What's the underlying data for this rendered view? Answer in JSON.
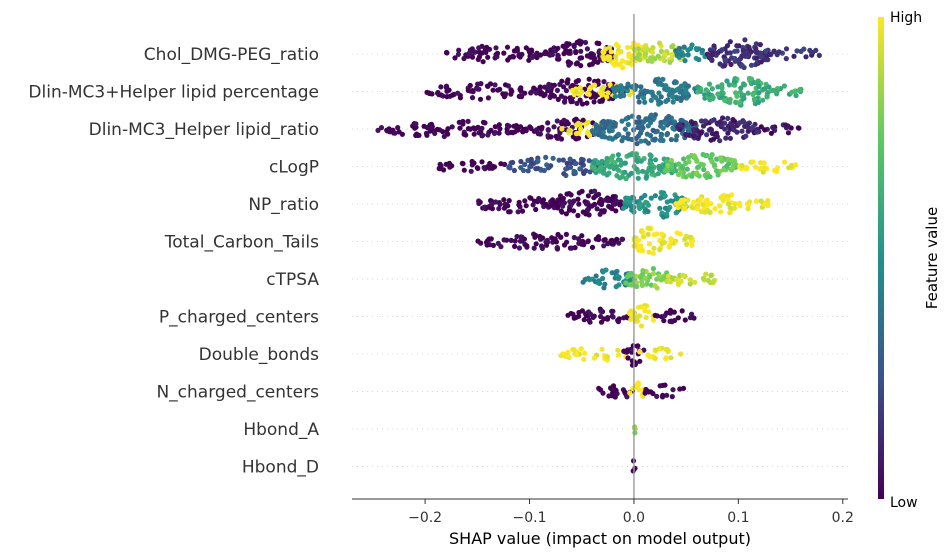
{
  "chart_data": {
    "type": "scatter",
    "subtype": "shap-beeswarm",
    "xlabel": "SHAP value (impact on model output)",
    "xlim": [
      -0.27,
      0.205
    ],
    "xticks": [
      -0.2,
      -0.1,
      0.0,
      0.1,
      0.2
    ],
    "xtick_labels": [
      "−0.2",
      "−0.1",
      "0.0",
      "0.1",
      "0.2"
    ],
    "colorbar": {
      "label": "Feature value",
      "high_label": "High",
      "low_label": "Low",
      "colormap": "viridis",
      "colors": [
        "#440154",
        "#3b528b",
        "#21918c",
        "#5ec962",
        "#fde725"
      ]
    },
    "zero_line": true,
    "features": [
      {
        "name": "Chol_DMG-PEG_ratio",
        "segments": [
          {
            "from": -0.18,
            "to": -0.08,
            "level": 0.0,
            "density": 0.5
          },
          {
            "from": -0.08,
            "to": -0.02,
            "level": 0.0,
            "density": 1.0
          },
          {
            "from": -0.03,
            "to": 0.01,
            "level": 1.0,
            "density": 1.0
          },
          {
            "from": 0.0,
            "to": 0.05,
            "level": 0.9,
            "density": 0.8
          },
          {
            "from": 0.04,
            "to": 0.07,
            "level": 0.45,
            "density": 0.6
          },
          {
            "from": 0.07,
            "to": 0.13,
            "level": 0.15,
            "density": 1.2
          },
          {
            "from": 0.13,
            "to": 0.18,
            "level": 0.15,
            "density": 0.3
          }
        ]
      },
      {
        "name": "Dlin-MC3+Helper lipid percentage",
        "segments": [
          {
            "from": -0.2,
            "to": -0.09,
            "level": 0.0,
            "density": 0.45
          },
          {
            "from": -0.09,
            "to": -0.01,
            "level": 0.0,
            "density": 0.9
          },
          {
            "from": -0.06,
            "to": 0.0,
            "level": 1.0,
            "density": 0.4
          },
          {
            "from": -0.02,
            "to": 0.06,
            "level": 0.4,
            "density": 0.9
          },
          {
            "from": 0.06,
            "to": 0.08,
            "level": 0.6,
            "density": 0.6
          },
          {
            "from": 0.08,
            "to": 0.13,
            "level": 0.62,
            "density": 1.2
          },
          {
            "from": 0.13,
            "to": 0.16,
            "level": 0.62,
            "density": 0.4
          }
        ]
      },
      {
        "name": "Dlin-MC3_Helper lipid_ratio",
        "segments": [
          {
            "from": -0.25,
            "to": -0.1,
            "level": 0.0,
            "density": 0.45
          },
          {
            "from": -0.1,
            "to": -0.03,
            "level": 0.0,
            "density": 0.7
          },
          {
            "from": -0.07,
            "to": -0.02,
            "level": 1.0,
            "density": 0.4
          },
          {
            "from": -0.04,
            "to": 0.06,
            "level": 0.35,
            "density": 1.2
          },
          {
            "from": 0.04,
            "to": 0.12,
            "level": 0.1,
            "density": 0.8
          },
          {
            "from": 0.12,
            "to": 0.16,
            "level": 0.05,
            "density": 0.3
          }
        ]
      },
      {
        "name": "cLogP",
        "segments": [
          {
            "from": -0.19,
            "to": -0.12,
            "level": 0.0,
            "density": 0.3
          },
          {
            "from": -0.12,
            "to": -0.03,
            "level": 0.25,
            "density": 0.6
          },
          {
            "from": -0.04,
            "to": 0.04,
            "level": 0.6,
            "density": 1.0
          },
          {
            "from": 0.03,
            "to": 0.1,
            "level": 0.75,
            "density": 0.9
          },
          {
            "from": 0.1,
            "to": 0.155,
            "level": 1.0,
            "density": 0.35
          }
        ]
      },
      {
        "name": "NP_ratio",
        "segments": [
          {
            "from": -0.15,
            "to": -0.08,
            "level": 0.0,
            "density": 0.5
          },
          {
            "from": -0.08,
            "to": -0.01,
            "level": 0.0,
            "density": 1.0
          },
          {
            "from": -0.01,
            "to": 0.05,
            "level": 0.5,
            "density": 1.0
          },
          {
            "from": 0.04,
            "to": 0.13,
            "level": 1.0,
            "density": 0.6
          }
        ]
      },
      {
        "name": "Total_Carbon_Tails",
        "segments": [
          {
            "from": -0.15,
            "to": -0.01,
            "level": 0.0,
            "density": 0.45
          },
          {
            "from": 0.0,
            "to": 0.03,
            "level": 1.0,
            "density": 1.0
          },
          {
            "from": 0.03,
            "to": 0.057,
            "level": 1.0,
            "density": 0.55
          }
        ]
      },
      {
        "name": "cTPSA",
        "segments": [
          {
            "from": -0.05,
            "to": 0.0,
            "level": 0.45,
            "density": 0.6
          },
          {
            "from": -0.01,
            "to": 0.04,
            "level": 0.8,
            "density": 0.7
          },
          {
            "from": 0.03,
            "to": 0.08,
            "level": 0.9,
            "density": 0.4
          }
        ]
      },
      {
        "name": "P_charged_centers",
        "segments": [
          {
            "from": -0.065,
            "to": -0.005,
            "level": 0.0,
            "density": 0.45
          },
          {
            "from": -0.005,
            "to": 0.02,
            "level": 1.0,
            "density": 0.8
          },
          {
            "from": 0.02,
            "to": 0.06,
            "level": 0.0,
            "density": 0.35
          }
        ]
      },
      {
        "name": "Double_bonds",
        "segments": [
          {
            "from": -0.07,
            "to": -0.005,
            "level": 1.0,
            "density": 0.35
          },
          {
            "from": -0.01,
            "to": 0.01,
            "level": 0.0,
            "density": 0.8
          },
          {
            "from": 0.005,
            "to": 0.045,
            "level": 1.0,
            "density": 0.35
          }
        ]
      },
      {
        "name": "N_charged_centers",
        "segments": [
          {
            "from": -0.035,
            "to": 0.0,
            "level": 0.0,
            "density": 0.45
          },
          {
            "from": -0.005,
            "to": 0.01,
            "level": 1.0,
            "density": 0.6
          },
          {
            "from": 0.01,
            "to": 0.05,
            "level": 0.0,
            "density": 0.35
          }
        ]
      },
      {
        "name": "Hbond_A",
        "segments": [
          {
            "from": -0.001,
            "to": 0.001,
            "level": 0.85,
            "density": 0.6
          }
        ]
      },
      {
        "name": "Hbond_D",
        "segments": [
          {
            "from": -0.001,
            "to": 0.001,
            "level": 0.0,
            "density": 0.5
          }
        ]
      }
    ]
  }
}
